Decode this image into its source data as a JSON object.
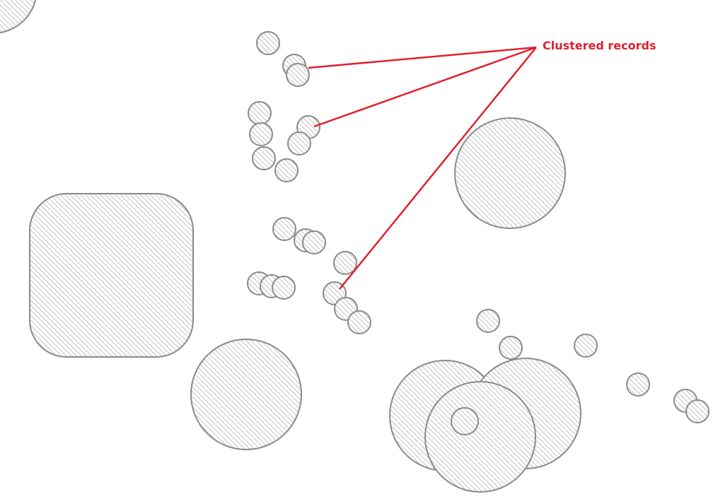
{
  "annotation": {
    "label": "Clustered records",
    "color": "#e0202c",
    "leader_line_count": 3
  },
  "symbology": {
    "fill_pattern": "diagonal-hatch",
    "stroke_color": "#8a8a8a",
    "hatch_color": "#a0a0a0",
    "background": "#ffffff"
  }
}
